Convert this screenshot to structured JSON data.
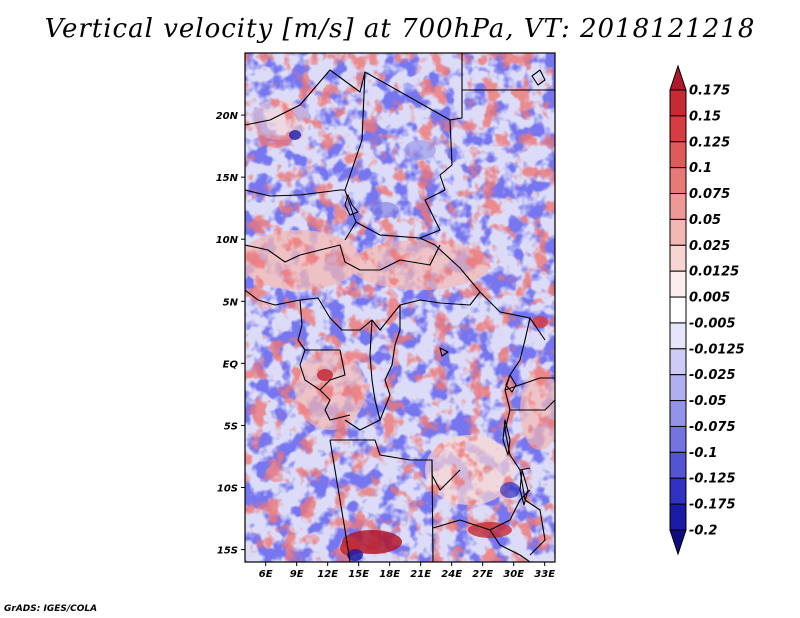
{
  "title": "Vertical velocity [m/s] at 700hPa, VT: 2018121218",
  "credit": "GrADS: IGES/COLA",
  "map": {
    "lon_range": [
      4,
      34
    ],
    "lat_range": [
      -16,
      25
    ],
    "lon_ticks": [
      {
        "value": 6,
        "label": "6E"
      },
      {
        "value": 9,
        "label": "9E"
      },
      {
        "value": 12,
        "label": "12E"
      },
      {
        "value": 15,
        "label": "15E"
      },
      {
        "value": 18,
        "label": "18E"
      },
      {
        "value": 21,
        "label": "21E"
      },
      {
        "value": 24,
        "label": "24E"
      },
      {
        "value": 27,
        "label": "27E"
      },
      {
        "value": 30,
        "label": "30E"
      },
      {
        "value": 33,
        "label": "33E"
      }
    ],
    "lat_ticks": [
      {
        "value": 20,
        "label": "20N"
      },
      {
        "value": 15,
        "label": "15N"
      },
      {
        "value": 10,
        "label": "10N"
      },
      {
        "value": 5,
        "label": "5N"
      },
      {
        "value": 0,
        "label": "EQ"
      },
      {
        "value": -5,
        "label": "5S"
      },
      {
        "value": -10,
        "label": "10S"
      },
      {
        "value": -15,
        "label": "15S"
      }
    ]
  },
  "colorbar": {
    "levels": [
      "0.175",
      "0.15",
      "0.125",
      "0.1",
      "0.075",
      "0.05",
      "0.025",
      "0.0125",
      "0.005",
      "-0.005",
      "-0.0125",
      "-0.025",
      "-0.05",
      "-0.075",
      "-0.1",
      "-0.125",
      "-0.175",
      "-0.2"
    ],
    "colors": [
      "#b2182b",
      "#c62a33",
      "#d73c40",
      "#e05a59",
      "#e77a77",
      "#ee9995",
      "#f4b8b4",
      "#f9d5d2",
      "#fdeeed",
      "#ffffff",
      "#e6e6fa",
      "#ccccf5",
      "#b0b0f0",
      "#9393ea",
      "#7474e0",
      "#5454d3",
      "#3232c2",
      "#1a1aa6",
      "#0d0d80"
    ]
  }
}
